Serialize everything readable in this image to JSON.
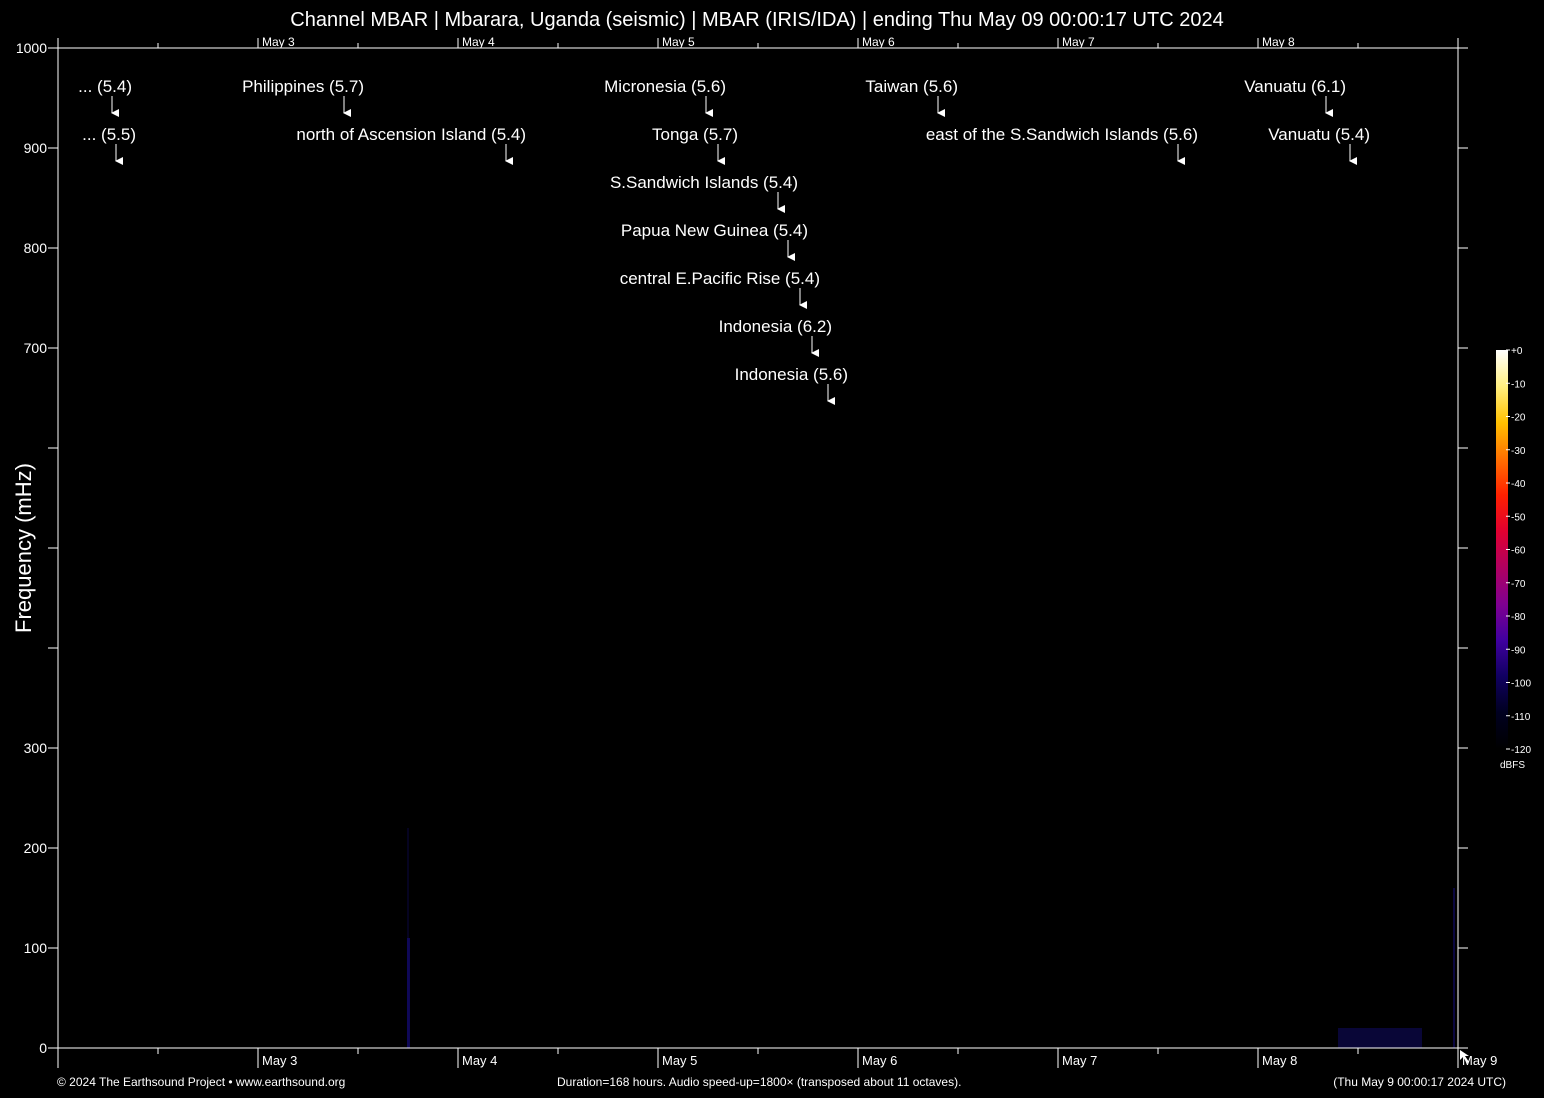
{
  "title": "Channel MBAR | Mbarara, Uganda (seismic) | MBAR (IRIS/IDA) | ending Thu May 09 00:00:17 UTC 2024",
  "chart_data": {
    "type": "heatmap",
    "ylabel": "Frequency (mHz)",
    "ylim": [
      0,
      1000
    ],
    "yticks": [
      0,
      100,
      200,
      300,
      400,
      500,
      600,
      700,
      800,
      900,
      1000
    ],
    "ytick_labels": [
      "0",
      "100",
      "200",
      "300",
      "",
      "",
      "",
      "700",
      "800",
      "900",
      "1000"
    ],
    "x_range_days": [
      0,
      7
    ],
    "x_tick_labels": [
      {
        "label": "May  3",
        "day": 1
      },
      {
        "label": "May  4",
        "day": 2
      },
      {
        "label": "May  5",
        "day": 3
      },
      {
        "label": "May  6",
        "day": 4
      },
      {
        "label": "May  7",
        "day": 5
      },
      {
        "label": "May  8",
        "day": 6
      }
    ],
    "x_end_label": "May  9",
    "events": [
      {
        "label": "... (5.5)",
        "day": 0.29
      },
      {
        "label": "... (5.4)",
        "day": 0.27
      },
      {
        "label": "north of Ascension Island (5.4)",
        "day": 2.24
      },
      {
        "label": "Philippines (5.7)",
        "day": 1.43
      },
      {
        "label": "Tonga (5.7)",
        "day": 3.3
      },
      {
        "label": "S.Sandwich Islands (5.4)",
        "day": 3.6
      },
      {
        "label": "Indonesia (5.6)",
        "day": 3.85
      },
      {
        "label": "Indonesia (6.2)",
        "day": 3.77
      },
      {
        "label": "central E.Pacific Rise (5.4)",
        "day": 3.71
      },
      {
        "label": "Papua New Guinea (5.4)",
        "day": 3.65
      },
      {
        "label": "Micronesia (5.6)",
        "day": 3.24
      },
      {
        "label": "east of the S.Sandwich Islands (5.6)",
        "day": 5.6
      },
      {
        "label": "Taiwan (5.6)",
        "day": 4.4
      },
      {
        "label": "Vanuatu (5.4)",
        "day": 6.46
      },
      {
        "label": "Vanuatu (6.1)",
        "day": 6.34
      }
    ],
    "colorbar": {
      "unit": "dBFS",
      "ticks": [
        "+0",
        "-10",
        "-20",
        "-30",
        "-40",
        "-50",
        "-60",
        "-70",
        "-80",
        "-90",
        "-100",
        "-110",
        "-120"
      ],
      "colors": [
        "#ffffff",
        "#ffef80",
        "#ffc000",
        "#ff7000",
        "#ff2000",
        "#e00030",
        "#b00060",
        "#800090",
        "#4000a0",
        "#100060",
        "#000020",
        "#000000"
      ]
    }
  },
  "footer": {
    "left": "© 2024 The Earthsound Project • www.earthsound.org",
    "center": "Duration=168 hours. Audio speed-up=1800× (transposed about 11 octaves).",
    "right": "(Thu May  9 00:00:17 2024 UTC)"
  }
}
